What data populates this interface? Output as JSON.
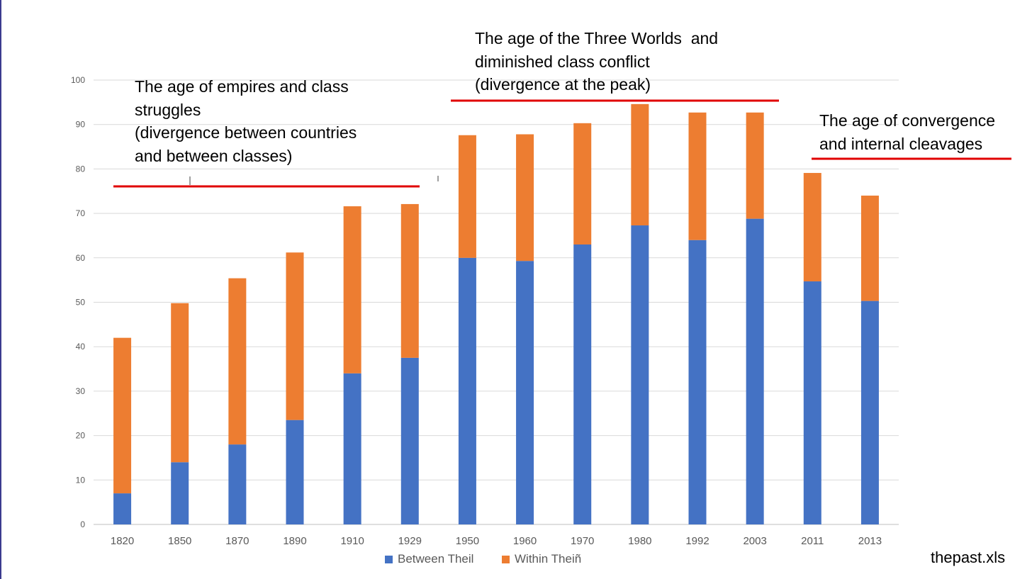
{
  "chart_data": {
    "type": "bar",
    "stacked": true,
    "categories": [
      "1820",
      "1850",
      "1870",
      "1890",
      "1910",
      "1929",
      "1950",
      "1960",
      "1970",
      "1980",
      "1992",
      "2003",
      "2011",
      "2013"
    ],
    "series": [
      {
        "name": "Between Theil",
        "color": "#4472c4",
        "values": [
          7,
          14,
          18,
          23.5,
          34,
          37.5,
          60,
          59.3,
          63,
          67.3,
          64,
          68.8,
          54.7,
          50.3
        ]
      },
      {
        "name": "Within Theiñ",
        "color": "#ed7d31",
        "values": [
          35,
          35.8,
          37.4,
          37.7,
          37.6,
          34.6,
          27.6,
          28.5,
          27.3,
          27.3,
          28.7,
          23.9,
          24.4,
          23.7
        ]
      }
    ],
    "ylim": [
      0,
      100
    ],
    "yticks": [
      0,
      10,
      20,
      30,
      40,
      50,
      60,
      70,
      80,
      90,
      100
    ],
    "grid": true,
    "legend": "bottom",
    "title": "",
    "xlabel": "",
    "ylabel": ""
  },
  "annotations": [
    {
      "lines": [
        "The age of empires and class",
        "struggles",
        "(divergence between countries",
        "and between classes)"
      ]
    },
    {
      "lines": [
        "The age of the Three Worlds  and",
        "diminished class conflict",
        "(divergence at the peak)"
      ]
    },
    {
      "lines": [
        "The age of convergence",
        "and internal cleavages"
      ]
    }
  ],
  "credit": "thepast.xls",
  "colors": {
    "highlight_line": "#e00000",
    "grid": "#d9d9d9",
    "tick_text": "#595959"
  }
}
